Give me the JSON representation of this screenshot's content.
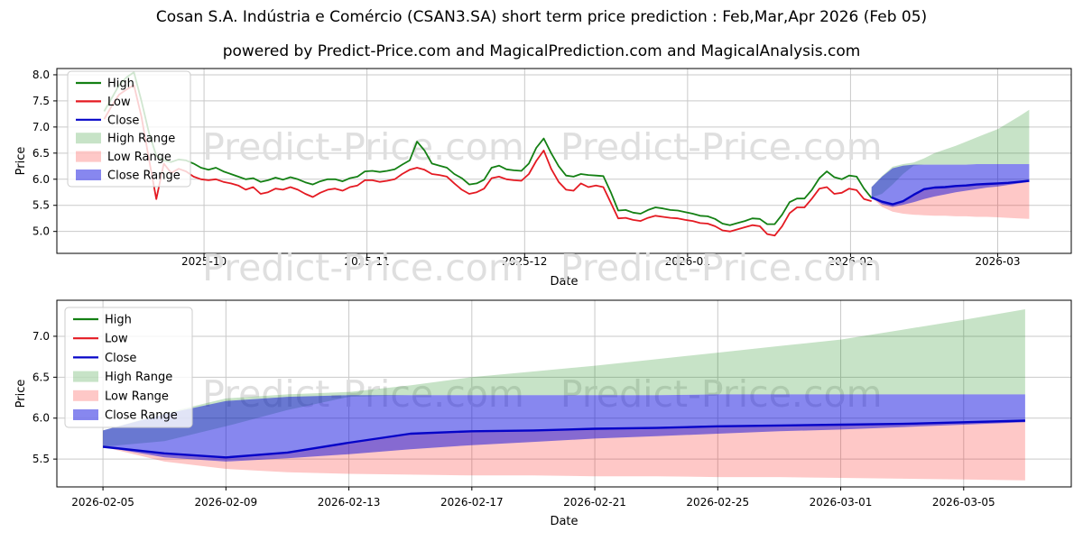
{
  "header": {
    "title": "Cosan S.A. Indústria e Comércio (CSAN3.SA) short term price prediction : Feb,Mar,Apr 2026 (Feb 05)",
    "subtitle": "powered by Predict-Price.com and MagicalPrediction.com and MagicalAnalysis.com"
  },
  "watermark": {
    "text": "Predict-Price.com",
    "color": "#dfdfdf"
  },
  "colors": {
    "high_line": "#148014",
    "low_line": "#e41a22",
    "close_line": "#0504c8",
    "high_fill": "rgba(0,128,0,0.22)",
    "low_fill": "rgba(250,35,30,0.25)",
    "close_fill": "rgba(0,0,221,0.47)",
    "grid": "#c9c9c9",
    "spine": "#000000",
    "legend_border": "#cccccc"
  },
  "legend": {
    "items": [
      {
        "label": "High",
        "swatch": "line",
        "color_key": "high_line"
      },
      {
        "label": "Low",
        "swatch": "line",
        "color_key": "low_line"
      },
      {
        "label": "Close",
        "swatch": "line",
        "color_key": "close_line"
      },
      {
        "label": "High Range",
        "swatch": "patch",
        "color_key": "high_fill"
      },
      {
        "label": "Low Range",
        "swatch": "patch",
        "color_key": "low_fill"
      },
      {
        "label": "Close Range",
        "swatch": "patch",
        "color_key": "close_fill"
      }
    ]
  },
  "chart_data": [
    {
      "type": "line",
      "name": "price-history-with-prediction",
      "xlabel": "Date",
      "ylabel": "Price",
      "ylim": [
        4.58,
        8.12
      ],
      "xlim": [
        "2025-09-03",
        "2026-03-15"
      ],
      "y_ticks": [
        5.0,
        5.5,
        6.0,
        6.5,
        7.0,
        7.5,
        8.0
      ],
      "x_ticks": [
        {
          "label": "2025-10",
          "date": "2025-10-01"
        },
        {
          "label": "2025-11",
          "date": "2025-11-01"
        },
        {
          "label": "2025-12",
          "date": "2025-12-01"
        },
        {
          "label": "2026-01",
          "date": "2026-01-01"
        },
        {
          "label": "2026-02",
          "date": "2026-02-01"
        },
        {
          "label": "2026-03",
          "date": "2026-03-01"
        }
      ],
      "history": {
        "start_date": "2025-09-12",
        "end_date": "2026-02-05",
        "high": [
          7.3,
          7.55,
          7.8,
          7.95,
          8.05,
          7.5,
          6.9,
          6.45,
          6.36,
          6.33,
          6.38,
          6.36,
          6.3,
          6.22,
          6.18,
          6.22,
          6.15,
          6.1,
          6.05,
          6.0,
          6.02,
          5.95,
          5.98,
          6.03,
          5.99,
          6.04,
          6.0,
          5.94,
          5.9,
          5.96,
          6.0,
          6.0,
          5.96,
          6.02,
          6.05,
          6.15,
          6.16,
          6.14,
          6.16,
          6.19,
          6.28,
          6.36,
          6.72,
          6.55,
          6.3,
          6.26,
          6.22,
          6.1,
          6.02,
          5.9,
          5.92,
          5.99,
          6.22,
          6.26,
          6.19,
          6.17,
          6.16,
          6.3,
          6.6,
          6.78,
          6.5,
          6.25,
          6.07,
          6.05,
          6.1,
          6.08,
          6.07,
          6.06,
          5.75,
          5.4,
          5.41,
          5.36,
          5.34,
          5.41,
          5.46,
          5.44,
          5.41,
          5.4,
          5.37,
          5.34,
          5.3,
          5.29,
          5.24,
          5.15,
          5.12,
          5.16,
          5.2,
          5.25,
          5.24,
          5.14,
          5.14,
          5.32,
          5.56,
          5.63,
          5.63,
          5.8,
          6.02,
          6.15,
          6.04,
          6.0,
          6.07,
          6.05,
          5.82,
          5.64
        ],
        "low": [
          7.15,
          7.4,
          7.62,
          7.72,
          7.8,
          7.2,
          6.4,
          5.62,
          6.3,
          6.12,
          6.2,
          6.15,
          6.05,
          6.0,
          5.98,
          6.0,
          5.95,
          5.92,
          5.88,
          5.8,
          5.85,
          5.72,
          5.75,
          5.82,
          5.8,
          5.85,
          5.8,
          5.72,
          5.66,
          5.74,
          5.8,
          5.82,
          5.78,
          5.85,
          5.88,
          5.98,
          5.98,
          5.95,
          5.97,
          6.0,
          6.1,
          6.18,
          6.22,
          6.18,
          6.1,
          6.08,
          6.05,
          5.92,
          5.8,
          5.72,
          5.75,
          5.82,
          6.02,
          6.05,
          6.0,
          5.98,
          5.97,
          6.1,
          6.35,
          6.55,
          6.2,
          5.95,
          5.8,
          5.78,
          5.92,
          5.85,
          5.88,
          5.85,
          5.55,
          5.25,
          5.26,
          5.22,
          5.2,
          5.26,
          5.3,
          5.28,
          5.26,
          5.25,
          5.22,
          5.2,
          5.16,
          5.15,
          5.1,
          5.02,
          5.0,
          5.04,
          5.08,
          5.12,
          5.1,
          4.95,
          4.92,
          5.1,
          5.35,
          5.46,
          5.46,
          5.63,
          5.82,
          5.85,
          5.72,
          5.74,
          5.82,
          5.79,
          5.62,
          5.58
        ]
      },
      "prediction": {
        "dates": [
          "2026-02-05",
          "2026-02-07",
          "2026-02-09",
          "2026-02-11",
          "2026-02-13",
          "2026-02-15",
          "2026-02-17",
          "2026-02-19",
          "2026-02-21",
          "2026-02-23",
          "2026-02-25",
          "2026-02-27",
          "2026-03-01",
          "2026-03-03",
          "2026-03-05",
          "2026-03-07"
        ],
        "close": [
          5.65,
          5.57,
          5.52,
          5.58,
          5.7,
          5.81,
          5.84,
          5.85,
          5.87,
          5.88,
          5.9,
          5.91,
          5.92,
          5.93,
          5.95,
          5.97
        ],
        "close_range_top": [
          5.85,
          6.05,
          6.21,
          6.26,
          6.28,
          6.28,
          6.28,
          6.28,
          6.28,
          6.28,
          6.29,
          6.29,
          6.29,
          6.29,
          6.29,
          6.29
        ],
        "close_range_bottom": [
          5.65,
          5.52,
          5.47,
          5.51,
          5.56,
          5.62,
          5.67,
          5.71,
          5.75,
          5.78,
          5.81,
          5.84,
          5.86,
          5.89,
          5.92,
          5.95
        ],
        "high_range_top": [
          5.85,
          6.06,
          6.24,
          6.29,
          6.32,
          6.4,
          6.5,
          6.57,
          6.64,
          6.72,
          6.8,
          6.88,
          6.96,
          7.08,
          7.2,
          7.33
        ],
        "high_range_bottom": [
          5.65,
          5.72,
          5.9,
          6.1,
          6.26,
          6.28,
          6.28,
          6.28,
          6.28,
          6.28,
          6.29,
          6.29,
          6.29,
          6.29,
          6.29,
          6.29
        ],
        "low_range_bottom": [
          5.65,
          5.47,
          5.38,
          5.34,
          5.32,
          5.31,
          5.3,
          5.3,
          5.29,
          5.29,
          5.28,
          5.28,
          5.27,
          5.26,
          5.25,
          5.24
        ]
      }
    },
    {
      "type": "area",
      "name": "prediction-zoom",
      "xlabel": "Date",
      "ylabel": "Price",
      "ylim": [
        5.16,
        7.44
      ],
      "xlim": [
        "2026-02-03T12:00:00",
        "2026-03-08T12:00:00"
      ],
      "y_ticks": [
        5.5,
        6.0,
        6.5,
        7.0
      ],
      "x_ticks": [
        {
          "label": "2026-02-05",
          "date": "2026-02-05"
        },
        {
          "label": "2026-02-09",
          "date": "2026-02-09"
        },
        {
          "label": "2026-02-13",
          "date": "2026-02-13"
        },
        {
          "label": "2026-02-17",
          "date": "2026-02-17"
        },
        {
          "label": "2026-02-21",
          "date": "2026-02-21"
        },
        {
          "label": "2026-02-25",
          "date": "2026-02-25"
        },
        {
          "label": "2026-03-01",
          "date": "2026-03-01"
        },
        {
          "label": "2026-03-05",
          "date": "2026-03-05"
        }
      ],
      "prediction_ref": 0
    }
  ]
}
